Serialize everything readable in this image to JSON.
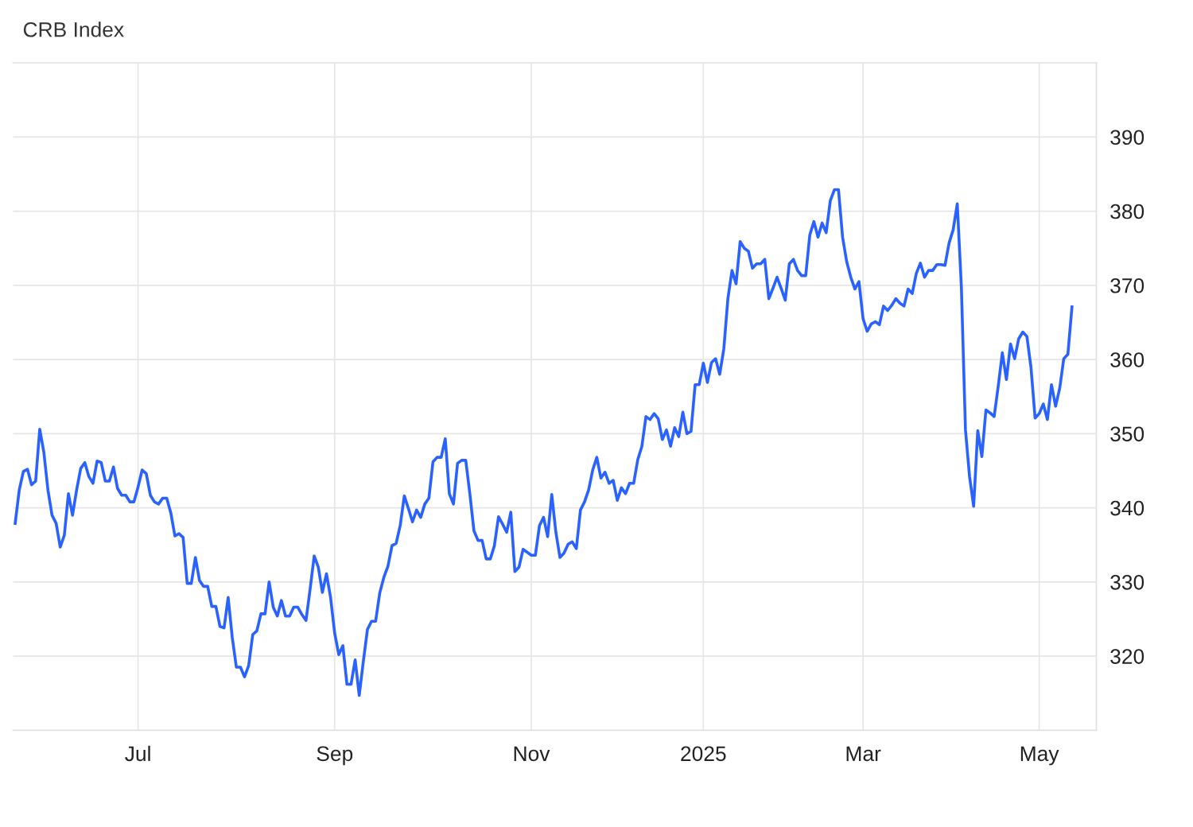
{
  "chart_data": {
    "type": "line",
    "title": "CRB Index",
    "categories": [
      null,
      null,
      null,
      null,
      null,
      null,
      null,
      null,
      null,
      null,
      null,
      null,
      null,
      null,
      null,
      null,
      null,
      null,
      null,
      null,
      null,
      null,
      null,
      null,
      null,
      null,
      null,
      null,
      null,
      null,
      "Jul",
      null,
      null,
      null,
      null,
      null,
      null,
      null,
      null,
      null,
      null,
      null,
      null,
      null,
      null,
      null,
      null,
      null,
      null,
      null,
      null,
      null,
      null,
      null,
      null,
      null,
      null,
      null,
      null,
      null,
      null,
      null,
      null,
      null,
      null,
      null,
      null,
      null,
      null,
      null,
      null,
      null,
      null,
      null,
      null,
      null,
      null,
      null,
      "Sep",
      null,
      null,
      null,
      null,
      null,
      null,
      null,
      null,
      null,
      null,
      null,
      null,
      null,
      null,
      null,
      null,
      null,
      null,
      null,
      null,
      null,
      null,
      null,
      null,
      null,
      null,
      null,
      null,
      null,
      null,
      null,
      null,
      null,
      null,
      null,
      null,
      null,
      null,
      null,
      null,
      null,
      null,
      null,
      null,
      null,
      null,
      null,
      "Nov",
      null,
      null,
      null,
      null,
      null,
      null,
      null,
      null,
      null,
      null,
      null,
      null,
      null,
      null,
      null,
      null,
      null,
      null,
      null,
      null,
      null,
      null,
      null,
      null,
      null,
      null,
      null,
      null,
      null,
      null,
      null,
      null,
      null,
      null,
      null,
      null,
      null,
      null,
      null,
      null,
      null,
      "2025",
      null,
      null,
      null,
      null,
      null,
      null,
      null,
      null,
      null,
      null,
      null,
      null,
      null,
      null,
      null,
      null,
      null,
      null,
      null,
      null,
      null,
      null,
      null,
      null,
      null,
      null,
      null,
      null,
      null,
      null,
      null,
      null,
      null,
      null,
      null,
      null,
      null,
      null,
      "Mar",
      null,
      null,
      null,
      null,
      null,
      null,
      null,
      null,
      null,
      null,
      null,
      null,
      null,
      null,
      null,
      null,
      null,
      null,
      null,
      null,
      null,
      null,
      null,
      null,
      null,
      null,
      null,
      null,
      null,
      null,
      null,
      null,
      null,
      null,
      null,
      null,
      null,
      null,
      null,
      null,
      null,
      null,
      "May",
      null,
      null,
      null,
      null,
      null,
      null,
      null,
      null
    ],
    "series": [
      {
        "color": "#2962ff",
        "values": [
          337.9,
          342.4,
          344.9,
          345.2,
          343.1,
          343.6,
          350.6,
          347.5,
          342.4,
          339.0,
          337.9,
          334.7,
          336.3,
          341.9,
          339.0,
          342.4,
          345.3,
          346.1,
          344.2,
          343.3,
          346.3,
          346.1,
          343.6,
          343.6,
          345.5,
          342.6,
          341.7,
          341.7,
          340.8,
          340.8,
          342.8,
          345.1,
          344.6,
          341.7,
          340.8,
          340.5,
          341.3,
          341.3,
          339.3,
          336.2,
          336.5,
          336.0,
          329.8,
          329.8,
          333.3,
          330.2,
          329.4,
          329.4,
          326.7,
          326.7,
          324.0,
          323.8,
          327.9,
          322.5,
          318.5,
          318.5,
          317.2,
          318.7,
          322.9,
          323.4,
          325.7,
          325.7,
          330.0,
          326.6,
          325.4,
          327.5,
          325.4,
          325.4,
          326.6,
          326.6,
          325.6,
          324.8,
          329.0,
          333.5,
          332.0,
          328.6,
          331.1,
          327.9,
          323.1,
          320.2,
          321.4,
          316.2,
          316.2,
          319.5,
          314.7,
          319.3,
          323.6,
          324.7,
          324.7,
          328.5,
          330.6,
          332.1,
          334.9,
          335.2,
          337.6,
          341.6,
          339.9,
          338.1,
          339.7,
          338.7,
          340.5,
          341.3,
          346.2,
          346.8,
          346.8,
          349.3,
          341.9,
          340.5,
          346.0,
          346.4,
          346.4,
          341.9,
          336.9,
          335.6,
          335.6,
          333.1,
          333.1,
          334.9,
          338.8,
          337.8,
          336.7,
          339.4,
          331.4,
          332.0,
          334.4,
          334.0,
          333.6,
          333.6,
          337.6,
          338.7,
          336.1,
          341.8,
          336.7,
          333.3,
          333.9,
          335.1,
          335.4,
          334.5,
          339.7,
          340.8,
          342.4,
          345.1,
          346.8,
          344.0,
          344.8,
          343.3,
          343.7,
          341.0,
          342.7,
          341.9,
          343.3,
          343.3,
          346.5,
          348.3,
          352.3,
          351.9,
          352.7,
          352.0,
          349.2,
          350.5,
          348.3,
          350.8,
          349.6,
          352.9,
          350.0,
          350.3,
          356.6,
          356.6,
          359.5,
          356.9,
          359.6,
          360.1,
          358.0,
          361.4,
          368.2,
          372.0,
          370.2,
          375.9,
          375.0,
          374.6,
          372.3,
          372.9,
          372.9,
          373.5,
          368.2,
          369.6,
          371.1,
          369.6,
          368.0,
          372.9,
          373.5,
          372.0,
          371.3,
          371.3,
          376.8,
          378.6,
          376.5,
          378.4,
          377.1,
          381.4,
          382.9,
          382.9,
          376.5,
          373.2,
          371.1,
          369.5,
          370.5,
          365.5,
          363.8,
          364.8,
          365.1,
          364.7,
          367.2,
          366.6,
          367.3,
          368.2,
          367.6,
          367.2,
          369.5,
          368.9,
          371.6,
          373.0,
          371.1,
          372.0,
          372.0,
          372.8,
          372.8,
          372.7,
          375.7,
          377.5,
          381.0,
          369.8,
          350.5,
          344.2,
          340.2,
          350.4,
          346.9,
          353.2,
          352.8,
          352.3,
          356.4,
          360.9,
          357.3,
          362.1,
          360.1,
          362.8,
          363.7,
          363.1,
          358.9,
          352.1,
          352.7,
          354.0,
          351.9,
          356.6,
          353.7,
          356.1,
          360.1,
          360.7,
          367.1
        ]
      }
    ],
    "ylim": [
      310,
      400
    ],
    "yticks": [
      320,
      330,
      340,
      350,
      360,
      370,
      380,
      390
    ],
    "grid": true,
    "legend": false,
    "marker": "none",
    "line_style": "solid"
  }
}
